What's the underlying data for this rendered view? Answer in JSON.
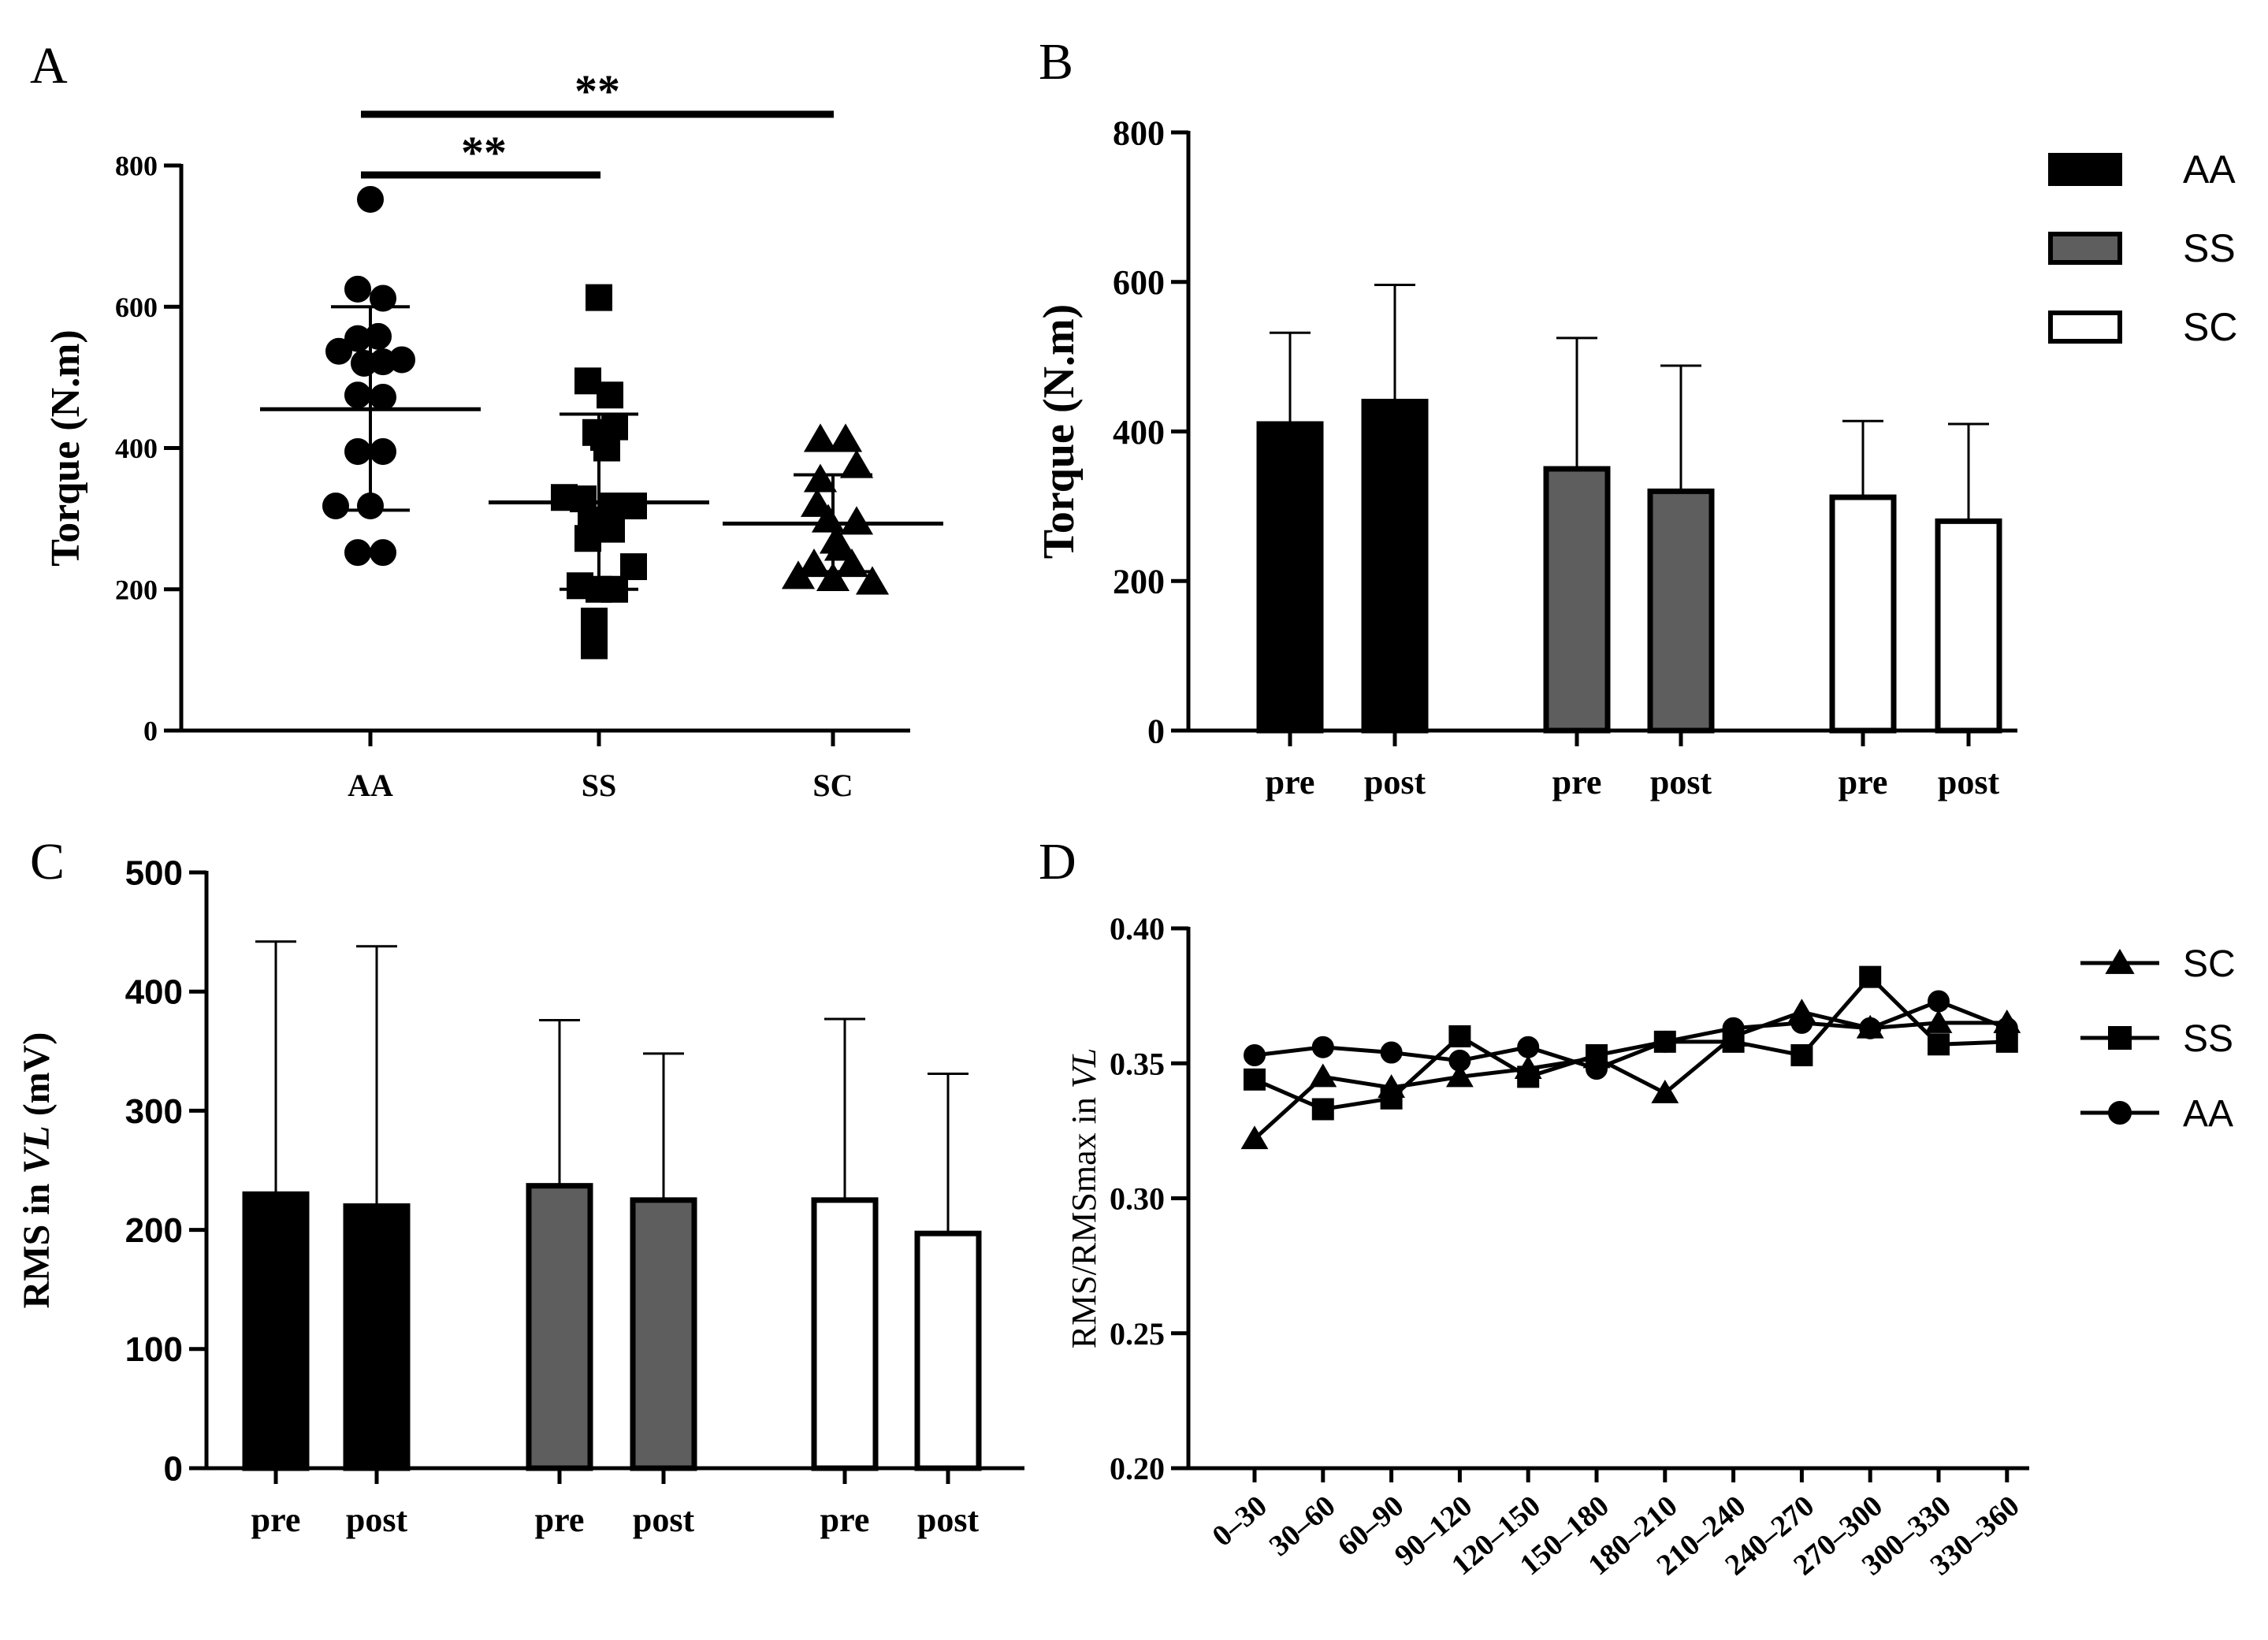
{
  "colors": {
    "AA": "#000000",
    "SS": "#5e5e5e",
    "SC": "#ffffff",
    "axis": "#000000"
  },
  "chart_data": [
    {
      "panel": "A",
      "type": "scatter",
      "ylabel": "Torque (N.m)",
      "ylim": [
        0,
        800
      ],
      "yticks": [
        "0",
        "200",
        "400",
        "600",
        "800"
      ],
      "categories": [
        "AA",
        "SS",
        "SC"
      ],
      "groups": [
        {
          "name": "AA",
          "marker": "circle",
          "mean": 455,
          "sd_low": 312,
          "sd_high": 600,
          "points": [
            [
              0,
              752
            ],
            [
              -0.08,
              625
            ],
            [
              0.08,
              612
            ],
            [
              -0.2,
              537
            ],
            [
              -0.08,
              555
            ],
            [
              0.05,
              558
            ],
            [
              0.2,
              525
            ],
            [
              -0.04,
              520
            ],
            [
              0.08,
              522
            ],
            [
              -0.08,
              475
            ],
            [
              0.08,
              472
            ],
            [
              -0.08,
              395
            ],
            [
              0.08,
              395
            ],
            [
              -0.22,
              318
            ],
            [
              0.0,
              318
            ],
            [
              -0.08,
              252
            ],
            [
              0.08,
              252
            ]
          ]
        },
        {
          "name": "SS",
          "marker": "square",
          "mean": 323,
          "sd_low": 200,
          "sd_high": 448,
          "points": [
            [
              0,
              613
            ],
            [
              -0.07,
              495
            ],
            [
              0.07,
              475
            ],
            [
              0.1,
              430
            ],
            [
              -0.02,
              422
            ],
            [
              0.03,
              415
            ],
            [
              0.05,
              400
            ],
            [
              -0.22,
              330
            ],
            [
              -0.1,
              328
            ],
            [
              0.08,
              318
            ],
            [
              0.22,
              318
            ],
            [
              -0.05,
              298
            ],
            [
              0.08,
              285
            ],
            [
              -0.07,
              272
            ],
            [
              0.22,
              232
            ],
            [
              -0.12,
              205
            ],
            [
              0.0,
              200
            ],
            [
              0.1,
              200
            ],
            [
              -0.03,
              155
            ],
            [
              -0.03,
              120
            ]
          ]
        },
        {
          "name": "SC",
          "marker": "triangle",
          "mean": 293,
          "sd_low": 225,
          "sd_high": 362,
          "points": [
            [
              -0.08,
              412
            ],
            [
              0.08,
              412
            ],
            [
              0.15,
              375
            ],
            [
              -0.08,
              355
            ],
            [
              -0.1,
              320
            ],
            [
              -0.03,
              298
            ],
            [
              0.15,
              295
            ],
            [
              0.02,
              268
            ],
            [
              0.05,
              258
            ],
            [
              -0.22,
              218
            ],
            [
              0.0,
              215
            ],
            [
              -0.12,
              235
            ],
            [
              0.12,
              235
            ],
            [
              0.25,
              210
            ]
          ]
        }
      ],
      "significance": [
        {
          "from": "AA",
          "to": "SC",
          "label": "**"
        },
        {
          "from": "AA",
          "to": "SS",
          "label": "**"
        }
      ]
    },
    {
      "panel": "B",
      "type": "bar",
      "ylabel": "Torque (N.m)",
      "ylim": [
        0,
        800
      ],
      "yticks": [
        "0",
        "200",
        "400",
        "600",
        "800"
      ],
      "categories": [
        "pre",
        "post",
        "pre",
        "post",
        "pre",
        "post"
      ],
      "groups": [
        "AA",
        "AA",
        "SS",
        "SS",
        "SC",
        "SC"
      ],
      "values": [
        410,
        440,
        350,
        320,
        312,
        280
      ],
      "errors": [
        122,
        156,
        175,
        168,
        102,
        130
      ],
      "legend": [
        "AA",
        "SS",
        "SC"
      ]
    },
    {
      "panel": "C",
      "type": "bar",
      "ylabel": "RMS in VL (mV)",
      "ylim": [
        0,
        500
      ],
      "yticks": [
        "0",
        "100",
        "200",
        "300",
        "400",
        "500"
      ],
      "categories": [
        "pre",
        "post",
        "pre",
        "post",
        "pre",
        "post"
      ],
      "groups": [
        "AA",
        "AA",
        "SS",
        "SS",
        "SC",
        "SC"
      ],
      "values": [
        230,
        220,
        237,
        225,
        225,
        197
      ],
      "errors": [
        212,
        218,
        139,
        123,
        152,
        134
      ]
    },
    {
      "panel": "D",
      "type": "line",
      "ylabel": "RMS/RMSmax in VL",
      "ylim": [
        0.2,
        0.4
      ],
      "yticks": [
        "0.20",
        "0.25",
        "0.30",
        "0.35",
        "0.40"
      ],
      "categories": [
        "0–30",
        "30–60",
        "60–90",
        "90–120",
        "120–150",
        "150–180",
        "180–210",
        "210–240",
        "240–270",
        "270–300",
        "300–330",
        "330–360"
      ],
      "series": [
        {
          "name": "SC",
          "marker": "triangle",
          "values": [
            0.322,
            0.345,
            0.341,
            0.345,
            0.348,
            0.352,
            0.339,
            0.36,
            0.369,
            0.363,
            0.365,
            0.365
          ]
        },
        {
          "name": "SS",
          "marker": "square",
          "values": [
            0.344,
            0.333,
            0.337,
            0.36,
            0.345,
            0.353,
            0.358,
            0.358,
            0.353,
            0.382,
            0.357,
            0.358
          ]
        },
        {
          "name": "AA",
          "marker": "circle",
          "values": [
            0.353,
            0.356,
            0.354,
            0.351,
            0.356,
            0.348,
            0.358,
            0.363,
            0.365,
            0.363,
            0.373,
            0.363
          ]
        }
      ],
      "legend": [
        "SC",
        "SS",
        "AA"
      ]
    }
  ]
}
